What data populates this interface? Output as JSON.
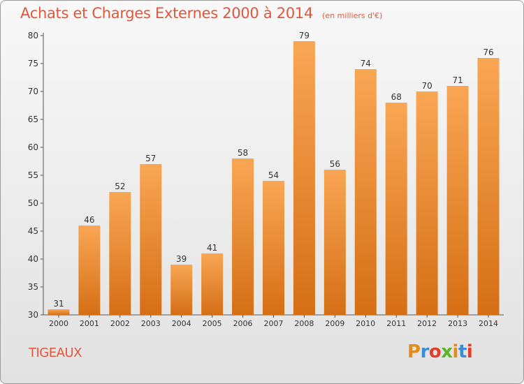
{
  "title": "Achats et Charges Externes 2000 à 2014",
  "subtitle": "(en milliers d'€)",
  "commune": "TIGEAUX",
  "logo": {
    "text": "Proxiti",
    "colors": [
      "#e68a1c",
      "#3a8ed8",
      "#e63a2a",
      "#5bb52c",
      "#e68a1c",
      "#3a8ed8",
      "#e63a2a"
    ]
  },
  "colors": {
    "title": "#e0573d",
    "bar_top": "#f9a654",
    "bar_bottom": "#d56f16"
  },
  "chart_data": {
    "type": "bar",
    "categories": [
      "2000",
      "2001",
      "2002",
      "2003",
      "2004",
      "2005",
      "2006",
      "2007",
      "2008",
      "2009",
      "2010",
      "2011",
      "2012",
      "2013",
      "2014"
    ],
    "values": [
      31,
      46,
      52,
      57,
      39,
      41,
      58,
      54,
      79,
      56,
      74,
      68,
      70,
      71,
      76
    ],
    "ylim": [
      30,
      80
    ],
    "yticks": [
      30,
      35,
      40,
      45,
      50,
      55,
      60,
      65,
      70,
      75,
      80
    ],
    "grid": false,
    "data_labels": true
  }
}
